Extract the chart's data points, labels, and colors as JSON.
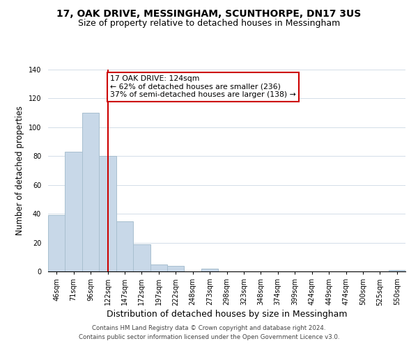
{
  "title": "17, OAK DRIVE, MESSINGHAM, SCUNTHORPE, DN17 3US",
  "subtitle": "Size of property relative to detached houses in Messingham",
  "xlabel": "Distribution of detached houses by size in Messingham",
  "ylabel": "Number of detached properties",
  "bar_labels": [
    "46sqm",
    "71sqm",
    "96sqm",
    "122sqm",
    "147sqm",
    "172sqm",
    "197sqm",
    "222sqm",
    "248sqm",
    "273sqm",
    "298sqm",
    "323sqm",
    "348sqm",
    "374sqm",
    "399sqm",
    "424sqm",
    "449sqm",
    "474sqm",
    "500sqm",
    "525sqm",
    "550sqm"
  ],
  "bar_values": [
    39,
    83,
    110,
    80,
    35,
    19,
    5,
    4,
    0,
    2,
    0,
    0,
    0,
    0,
    0,
    0,
    0,
    0,
    0,
    0,
    1
  ],
  "bar_color": "#c8d8e8",
  "bar_edge_color": "#a8bfcf",
  "vline_x": 3,
  "vline_color": "#cc0000",
  "ylim": [
    0,
    140
  ],
  "annotation_text": "17 OAK DRIVE: 124sqm\n← 62% of detached houses are smaller (236)\n37% of semi-detached houses are larger (138) →",
  "annotation_box_color": "#ffffff",
  "annotation_box_edge": "#cc0000",
  "footer_line1": "Contains HM Land Registry data © Crown copyright and database right 2024.",
  "footer_line2": "Contains public sector information licensed under the Open Government Licence v3.0.",
  "title_fontsize": 10,
  "subtitle_fontsize": 9,
  "tick_fontsize": 7,
  "ylabel_fontsize": 8.5,
  "xlabel_fontsize": 9,
  "annotation_fontsize": 7.8,
  "footer_fontsize": 6.2
}
